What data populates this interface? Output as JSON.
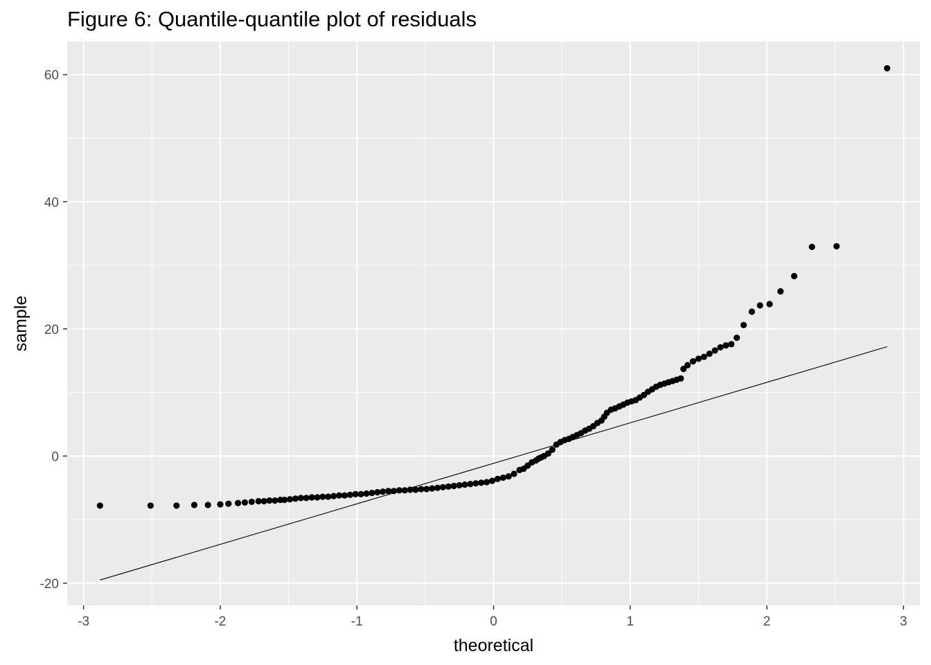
{
  "chart_data": {
    "type": "scatter",
    "title": "Figure 6: Quantile-quantile plot of residuals",
    "xlabel": "theoretical",
    "ylabel": "sample",
    "xlim": [
      -3.12,
      3.12
    ],
    "ylim": [
      -23.5,
      65.2
    ],
    "x_ticks": [
      -3,
      -2,
      -1,
      0,
      1,
      2,
      3
    ],
    "y_ticks": [
      -20,
      0,
      20,
      40,
      60
    ],
    "grid": true,
    "legend": "none",
    "colors": {
      "panel": "#ebebeb",
      "grid": "#ffffff",
      "point": "#000000",
      "line": "#000000"
    },
    "reference_line": {
      "x": [
        -2.88,
        2.88
      ],
      "y": [
        -19.5,
        17.2
      ]
    },
    "series": [
      {
        "x": [
          -2.88,
          -2.51,
          -2.32,
          -2.19,
          -2.09,
          -2.0,
          -1.94,
          -1.87,
          -1.82,
          -1.77,
          -1.72,
          -1.68,
          -1.64,
          -1.6,
          -1.56,
          -1.53,
          -1.49,
          -1.45,
          -1.41,
          -1.37,
          -1.33,
          -1.29,
          -1.25,
          -1.21,
          -1.17,
          -1.13,
          -1.09,
          -1.05,
          -1.01,
          -0.97,
          -0.93,
          -0.89,
          -0.85,
          -0.81,
          -0.77,
          -0.73,
          -0.69,
          -0.65,
          -0.61,
          -0.57,
          -0.53,
          -0.49,
          -0.45,
          -0.41,
          -0.37,
          -0.33,
          -0.29,
          -0.25,
          -0.21,
          -0.17,
          -0.13,
          -0.09,
          -0.05,
          -0.01,
          0.03,
          0.07,
          0.11,
          0.15,
          0.19,
          0.22,
          0.25,
          0.28,
          0.31,
          0.33,
          0.35,
          0.37,
          0.4,
          0.43,
          0.46,
          0.49,
          0.52,
          0.55,
          0.58,
          0.61,
          0.64,
          0.67,
          0.7,
          0.73,
          0.76,
          0.79,
          0.81,
          0.83,
          0.86,
          0.89,
          0.92,
          0.95,
          0.98,
          1.01,
          1.04,
          1.07,
          1.1,
          1.13,
          1.16,
          1.19,
          1.22,
          1.25,
          1.28,
          1.31,
          1.34,
          1.37,
          1.39,
          1.42,
          1.46,
          1.5,
          1.54,
          1.58,
          1.62,
          1.66,
          1.7,
          1.74,
          1.78,
          1.83,
          1.89,
          1.95,
          2.02,
          2.1,
          2.2,
          2.33,
          2.51,
          2.88
        ],
        "y": [
          -7.8,
          -7.8,
          -7.8,
          -7.7,
          -7.7,
          -7.6,
          -7.5,
          -7.4,
          -7.3,
          -7.2,
          -7.1,
          -7.1,
          -7.0,
          -7.0,
          -6.9,
          -6.9,
          -6.8,
          -6.7,
          -6.6,
          -6.6,
          -6.5,
          -6.5,
          -6.4,
          -6.4,
          -6.3,
          -6.2,
          -6.2,
          -6.1,
          -6.0,
          -6.0,
          -5.9,
          -5.8,
          -5.7,
          -5.6,
          -5.5,
          -5.5,
          -5.4,
          -5.4,
          -5.3,
          -5.3,
          -5.2,
          -5.2,
          -5.1,
          -5.0,
          -4.9,
          -4.8,
          -4.7,
          -4.6,
          -4.5,
          -4.4,
          -4.3,
          -4.2,
          -4.1,
          -3.9,
          -3.6,
          -3.4,
          -3.2,
          -2.8,
          -2.2,
          -2.0,
          -1.5,
          -1.0,
          -0.7,
          -0.4,
          -0.2,
          0.0,
          0.4,
          1.0,
          1.8,
          2.2,
          2.5,
          2.7,
          3.0,
          3.3,
          3.6,
          4.0,
          4.3,
          4.7,
          5.2,
          5.6,
          6.2,
          6.8,
          7.3,
          7.5,
          7.8,
          8.1,
          8.4,
          8.6,
          8.8,
          9.2,
          9.6,
          10.1,
          10.5,
          10.9,
          11.2,
          11.4,
          11.6,
          11.8,
          12.0,
          12.2,
          13.7,
          14.3,
          14.9,
          15.3,
          15.6,
          16.1,
          16.6,
          17.1,
          17.4,
          17.6,
          18.6,
          20.6,
          22.7,
          23.7,
          23.9,
          25.9,
          28.3,
          32.9,
          33.0,
          61.0
        ]
      }
    ]
  }
}
